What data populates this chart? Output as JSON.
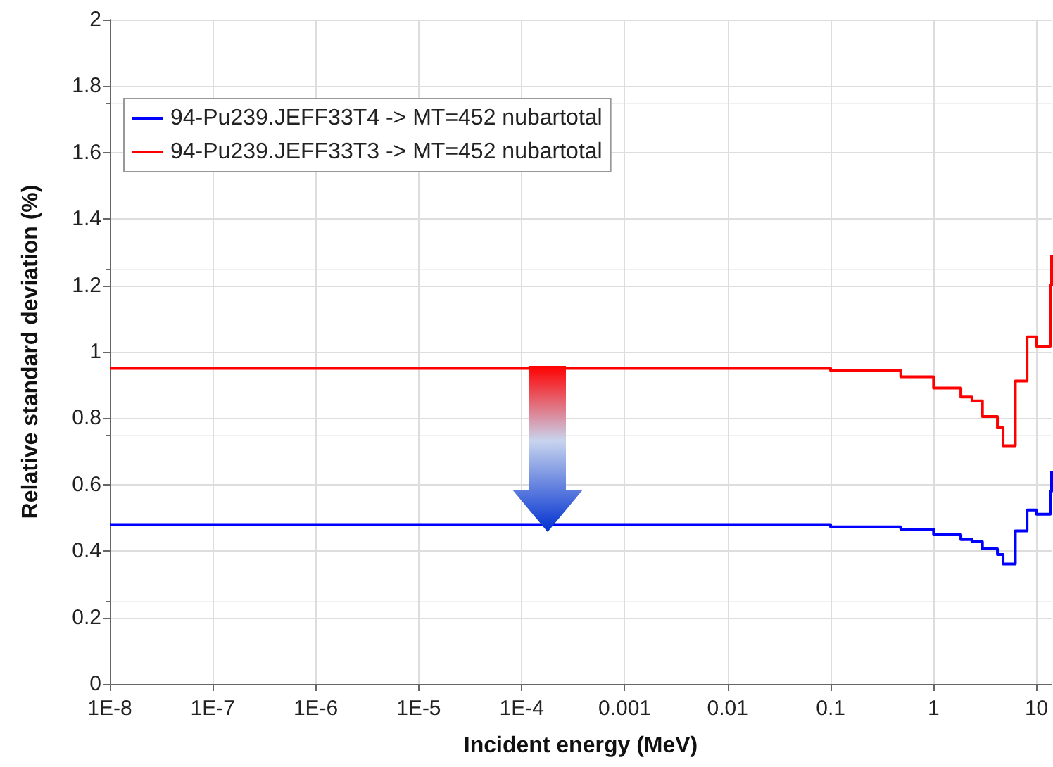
{
  "chart_data": {
    "type": "step",
    "xlabel": "Incident energy (MeV)",
    "ylabel": "Relative standard deviation (%)",
    "x": [
      1e-08,
      0.1,
      0.48,
      1.0,
      1.84,
      2.36,
      2.98,
      4.17,
      4.73,
      6.22,
      8.09,
      10,
      13.6,
      14
    ],
    "series": [
      {
        "name": "94-Pu239.JEFF33T4 -> MT=452 nubartotal",
        "color": "#0000ff",
        "values": [
          0.48,
          0.473,
          0.466,
          0.449,
          0.435,
          0.428,
          0.407,
          0.39,
          0.361,
          0.461,
          0.524,
          0.511,
          0.58,
          0.64
        ]
      },
      {
        "name": "94-Pu239.JEFF33T3 -> MT=452 nubartotal",
        "color": "#ff0000",
        "values": [
          0.95,
          0.944,
          0.925,
          0.891,
          0.864,
          0.852,
          0.805,
          0.771,
          0.717,
          0.912,
          1.045,
          1.017,
          1.2,
          1.29
        ]
      }
    ],
    "log": "x",
    "xlim": [
      1e-08,
      14
    ],
    "xticks": [
      {
        "value": 1e-08,
        "label": "1E-8"
      },
      {
        "value": 1e-07,
        "label": "1E-7"
      },
      {
        "value": 1e-06,
        "label": "1E-6"
      },
      {
        "value": 1e-05,
        "label": "1E-5"
      },
      {
        "value": 0.0001,
        "label": "1E-4"
      },
      0.001,
      0.01,
      0.1,
      1,
      10
    ],
    "ylim": [
      0,
      2
    ],
    "yticks": [
      0,
      0.2,
      0.4,
      0.6,
      0.8,
      1,
      1.2,
      1.4,
      1.6,
      1.8,
      2
    ],
    "grid": true,
    "legend": "top left",
    "marker": "none",
    "line_style": "solid"
  }
}
